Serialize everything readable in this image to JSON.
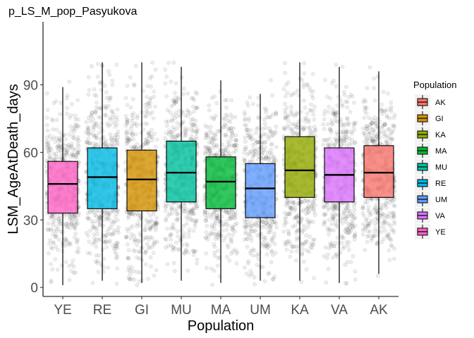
{
  "chart_data": {
    "type": "box",
    "title": "p_LS_M_pop_Pasyukova",
    "xlabel": "Population",
    "ylabel": "LSM_AgeAtDeath_days",
    "ylim": [
      -4,
      118
    ],
    "yticks": [
      0,
      30,
      60,
      90
    ],
    "grid": false,
    "legend": {
      "title": "Population",
      "placement": "right",
      "entries": [
        "AK",
        "GI",
        "KA",
        "MA",
        "MU",
        "RE",
        "UM",
        "VA",
        "YE"
      ]
    },
    "categories": [
      "YE",
      "RE",
      "GI",
      "MU",
      "MA",
      "UM",
      "KA",
      "VA",
      "AK"
    ],
    "series": [
      {
        "category": "YE",
        "color": "#FF61C3",
        "min": 1,
        "q1": 33,
        "median": 46,
        "q3": 56,
        "max": 89,
        "points_max": 100
      },
      {
        "category": "RE",
        "color": "#00B9E3",
        "min": 3,
        "q1": 35,
        "median": 49,
        "q3": 62,
        "max": 100,
        "points_max": 100
      },
      {
        "category": "GI",
        "color": "#D39200",
        "min": 2,
        "q1": 34,
        "median": 48,
        "q3": 61,
        "max": 100,
        "points_max": 100
      },
      {
        "category": "MU",
        "color": "#00C19F",
        "min": 3,
        "q1": 38,
        "median": 51,
        "q3": 65,
        "max": 98,
        "points_max": 100
      },
      {
        "category": "MA",
        "color": "#00BA38",
        "min": 2,
        "q1": 35,
        "median": 47,
        "q3": 58,
        "max": 92,
        "points_max": 100
      },
      {
        "category": "UM",
        "color": "#619CFF",
        "min": 3,
        "q1": 31,
        "median": 44,
        "q3": 55,
        "max": 86,
        "points_max": 96
      },
      {
        "category": "KA",
        "color": "#93AA00",
        "min": 3,
        "q1": 40,
        "median": 52,
        "q3": 67,
        "max": 100,
        "points_max": 100
      },
      {
        "category": "VA",
        "color": "#DB72FB",
        "min": 2,
        "q1": 38,
        "median": 50,
        "q3": 62,
        "max": 98,
        "points_max": 100
      },
      {
        "category": "AK",
        "color": "#F8766D",
        "min": 6,
        "q1": 40,
        "median": 51,
        "q3": 63,
        "max": 96,
        "points_max": 100
      }
    ]
  }
}
